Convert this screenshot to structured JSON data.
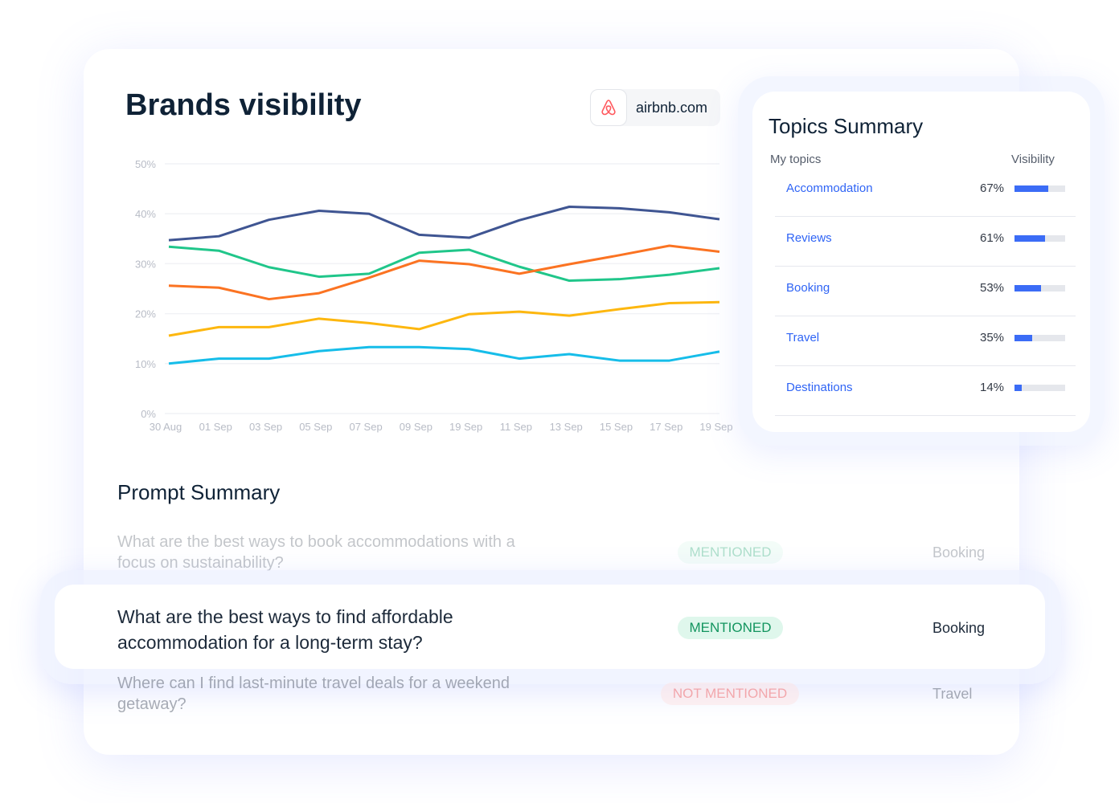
{
  "brands": {
    "title": "Brands visibility",
    "domain": "airbnb.com",
    "logo_icon": "airbnb-logo-icon"
  },
  "chart_data": {
    "type": "line",
    "title": "",
    "xlabel": "",
    "ylabel": "",
    "categories": [
      "30 Aug",
      "01 Sep",
      "03 Sep",
      "05 Sep",
      "07 Sep",
      "09 Sep",
      "19 Sep",
      "11 Sep",
      "13 Sep",
      "15 Sep",
      "17 Sep",
      "19 Sep"
    ],
    "yticks": [
      "0%",
      "10%",
      "20%",
      "30%",
      "40%",
      "50%"
    ],
    "ylim": [
      0,
      50
    ],
    "grid": true,
    "series": [
      {
        "color": "#3f5592",
        "values": [
          34.7,
          35.5,
          38.8,
          40.6,
          40,
          35.8,
          35.2,
          38.7,
          41.4,
          41.1,
          40.3,
          38.9
        ]
      },
      {
        "color": "#20c68a",
        "values": [
          33.4,
          32.6,
          29.3,
          27.4,
          28,
          32.2,
          32.8,
          29.4,
          26.6,
          26.9,
          27.8,
          29.1
        ]
      },
      {
        "color": "#fb7322",
        "values": [
          25.6,
          25.2,
          22.9,
          24.1,
          27.2,
          30.6,
          29.9,
          28,
          29.9,
          31.7,
          33.6,
          32.4
        ]
      },
      {
        "color": "#fdb70f",
        "values": [
          15.6,
          17.3,
          17.3,
          19,
          18.1,
          16.9,
          19.9,
          20.4,
          19.6,
          20.9,
          22.1,
          22.3
        ]
      },
      {
        "color": "#16bde9",
        "values": [
          10,
          11,
          11,
          12.5,
          13.3,
          13.3,
          12.9,
          11,
          11.9,
          10.6,
          10.6,
          12.4
        ]
      }
    ]
  },
  "topics": {
    "title": "Topics Summary",
    "col_topics": "My topics",
    "col_visibility": "Visibility",
    "items": [
      {
        "name": "Accommodation",
        "pct": "67%",
        "value": 67
      },
      {
        "name": "Reviews",
        "pct": "61%",
        "value": 61
      },
      {
        "name": "Booking",
        "pct": "53%",
        "value": 53
      },
      {
        "name": "Travel",
        "pct": "35%",
        "value": 35
      },
      {
        "name": "Destinations",
        "pct": "14%",
        "value": 14
      }
    ]
  },
  "prompts": {
    "title": "Prompt Summary",
    "items": [
      {
        "question": "What are the best ways to book accommodations with a focus on sustainability?",
        "status": "MENTIONED",
        "topic": "Booking"
      },
      {
        "question": "What are the best ways to find affordable accommodation for a long-term stay?",
        "status": "MENTIONED",
        "topic": "Booking"
      },
      {
        "question": "Where can I find last-minute travel deals for a weekend getaway?",
        "status": "NOT MENTIONED",
        "topic": "Travel"
      }
    ]
  }
}
